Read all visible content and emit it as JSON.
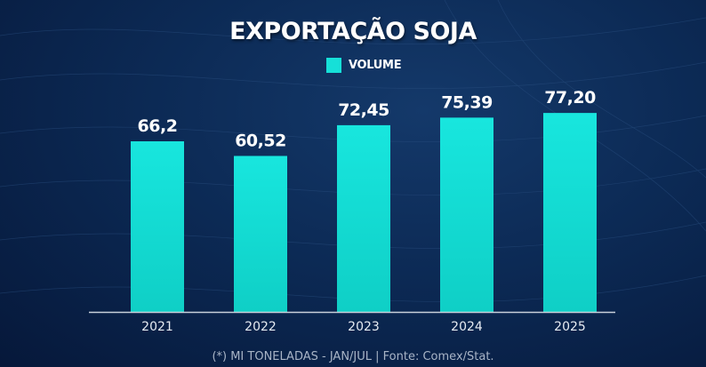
{
  "chart_data": {
    "type": "bar",
    "title": "EXPORTAÇÃO SOJA",
    "legend": [
      "VOLUME"
    ],
    "legend_position": "top-center",
    "categories": [
      "2021",
      "2022",
      "2023",
      "2024",
      "2025"
    ],
    "values": [
      66.2,
      60.52,
      72.45,
      75.39,
      77.2
    ],
    "value_labels": [
      "66,2",
      "60,52",
      "72,45",
      "75,39",
      "77,20"
    ],
    "xlabel": "",
    "ylabel": "",
    "ylim": [
      0,
      100
    ],
    "grid": false,
    "colors": {
      "bar": "#16e0d8",
      "axis": "#c8d0da",
      "text": "#ffffff"
    }
  },
  "footnote": "(*) MI TONELADAS - JAN/JUL | Fonte: Comex/Stat."
}
